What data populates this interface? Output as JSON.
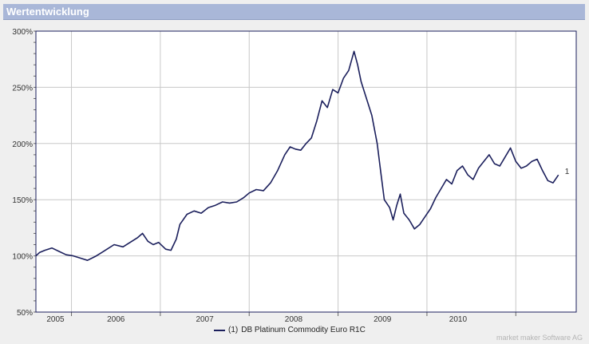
{
  "header": {
    "title": "Wertentwicklung"
  },
  "legend": {
    "number": "(1)",
    "label": "DB Platinum Commodity Euro R1C"
  },
  "footer": {
    "credit": "market maker Software AG"
  },
  "colors": {
    "line": "#1b1f5c",
    "titlebar": "#a9b7d8",
    "grid": "#c8c8c8",
    "background": "#ffffff"
  },
  "chart_data": {
    "type": "line",
    "ylim": [
      50,
      300
    ],
    "xlim": [
      2004.6,
      2010.68
    ],
    "y_ticks": [
      {
        "value": 50,
        "label": "50%"
      },
      {
        "value": 100,
        "label": "100%"
      },
      {
        "value": 150,
        "label": "150%"
      },
      {
        "value": 200,
        "label": "200%"
      },
      {
        "value": 250,
        "label": "250%"
      },
      {
        "value": 300,
        "label": "300%"
      }
    ],
    "x_gridlines": [
      2005.0,
      2006.0,
      2007.0,
      2008.0,
      2009.0,
      2010.0
    ],
    "x_tick_labels": [
      {
        "label": "2005",
        "pos": 2004.82
      },
      {
        "label": "2006",
        "pos": 2005.5
      },
      {
        "label": "2007",
        "pos": 2006.5
      },
      {
        "label": "2008",
        "pos": 2007.5
      },
      {
        "label": "2009",
        "pos": 2008.5
      },
      {
        "label": "2010",
        "pos": 2009.35
      }
    ],
    "grid": true,
    "series": [
      {
        "name": "DB Platinum Commodity Euro R1C",
        "end_label": "1",
        "points": [
          [
            2004.6,
            100
          ],
          [
            2004.64,
            103
          ],
          [
            2004.7,
            105
          ],
          [
            2004.78,
            107
          ],
          [
            2004.86,
            104
          ],
          [
            2004.94,
            101
          ],
          [
            2005.02,
            100
          ],
          [
            2005.1,
            98
          ],
          [
            2005.18,
            96
          ],
          [
            2005.28,
            100
          ],
          [
            2005.38,
            105
          ],
          [
            2005.48,
            110
          ],
          [
            2005.58,
            108
          ],
          [
            2005.66,
            112
          ],
          [
            2005.74,
            116
          ],
          [
            2005.8,
            120
          ],
          [
            2005.86,
            113
          ],
          [
            2005.92,
            110
          ],
          [
            2005.98,
            112
          ],
          [
            2006.06,
            106
          ],
          [
            2006.12,
            105
          ],
          [
            2006.18,
            115
          ],
          [
            2006.22,
            128
          ],
          [
            2006.3,
            137
          ],
          [
            2006.38,
            140
          ],
          [
            2006.46,
            138
          ],
          [
            2006.54,
            143
          ],
          [
            2006.62,
            145
          ],
          [
            2006.7,
            148
          ],
          [
            2006.78,
            147
          ],
          [
            2006.86,
            148
          ],
          [
            2006.94,
            152
          ],
          [
            2007.0,
            156
          ],
          [
            2007.08,
            159
          ],
          [
            2007.16,
            158
          ],
          [
            2007.24,
            165
          ],
          [
            2007.32,
            176
          ],
          [
            2007.4,
            190
          ],
          [
            2007.46,
            197
          ],
          [
            2007.52,
            195
          ],
          [
            2007.58,
            194
          ],
          [
            2007.64,
            200
          ],
          [
            2007.7,
            205
          ],
          [
            2007.76,
            220
          ],
          [
            2007.82,
            238
          ],
          [
            2007.88,
            232
          ],
          [
            2007.94,
            248
          ],
          [
            2008.0,
            245
          ],
          [
            2008.06,
            258
          ],
          [
            2008.12,
            265
          ],
          [
            2008.18,
            282
          ],
          [
            2008.22,
            270
          ],
          [
            2008.26,
            255
          ],
          [
            2008.32,
            240
          ],
          [
            2008.38,
            225
          ],
          [
            2008.44,
            200
          ],
          [
            2008.48,
            175
          ],
          [
            2008.52,
            150
          ],
          [
            2008.58,
            143
          ],
          [
            2008.62,
            132
          ],
          [
            2008.66,
            145
          ],
          [
            2008.7,
            155
          ],
          [
            2008.74,
            138
          ],
          [
            2008.8,
            132
          ],
          [
            2008.86,
            124
          ],
          [
            2008.92,
            128
          ],
          [
            2008.98,
            135
          ],
          [
            2009.04,
            142
          ],
          [
            2009.1,
            152
          ],
          [
            2009.16,
            160
          ],
          [
            2009.22,
            168
          ],
          [
            2009.28,
            164
          ],
          [
            2009.34,
            176
          ],
          [
            2009.4,
            180
          ],
          [
            2009.46,
            172
          ],
          [
            2009.52,
            168
          ],
          [
            2009.58,
            178
          ],
          [
            2009.64,
            184
          ],
          [
            2009.7,
            190
          ],
          [
            2009.76,
            182
          ],
          [
            2009.82,
            180
          ],
          [
            2009.88,
            188
          ],
          [
            2009.94,
            196
          ],
          [
            2010.0,
            184
          ],
          [
            2010.06,
            178
          ],
          [
            2010.12,
            180
          ],
          [
            2010.18,
            184
          ],
          [
            2010.24,
            186
          ],
          [
            2010.3,
            176
          ],
          [
            2010.36,
            167
          ],
          [
            2010.42,
            165
          ],
          [
            2010.48,
            172
          ]
        ]
      }
    ]
  }
}
